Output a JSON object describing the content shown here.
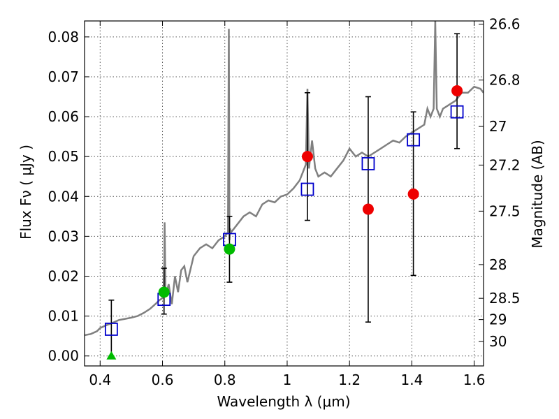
{
  "chart_data": {
    "type": "scatter",
    "xlabel": "Wavelength  λ (μm)",
    "ylabel": "Flux  Fν  ( μJy )",
    "y2label": "Magnitude (AB)",
    "xlim": [
      0.35,
      1.63
    ],
    "ylim": [
      -0.0025,
      0.084
    ],
    "grid": true,
    "x_ticks": [
      {
        "value": 0.4,
        "label": "0.4"
      },
      {
        "value": 0.6,
        "label": "0.6"
      },
      {
        "value": 0.8,
        "label": "0.8"
      },
      {
        "value": 1.0,
        "label": "1"
      },
      {
        "value": 1.2,
        "label": "1.2"
      },
      {
        "value": 1.4,
        "label": "1.4"
      },
      {
        "value": 1.6,
        "label": "1.6"
      }
    ],
    "y_ticks": [
      {
        "value": 0.0,
        "label": "0.00"
      },
      {
        "value": 0.01,
        "label": "0.01"
      },
      {
        "value": 0.02,
        "label": "0.02"
      },
      {
        "value": 0.03,
        "label": "0.03"
      },
      {
        "value": 0.04,
        "label": "0.04"
      },
      {
        "value": 0.05,
        "label": "0.05"
      },
      {
        "value": 0.06,
        "label": "0.06"
      },
      {
        "value": 0.07,
        "label": "0.07"
      },
      {
        "value": 0.08,
        "label": "0.08"
      }
    ],
    "y2_ticks": [
      {
        "mag": 26.6,
        "label": "26.6"
      },
      {
        "mag": 26.8,
        "label": "26.8"
      },
      {
        "mag": 27.0,
        "label": "27"
      },
      {
        "mag": 27.2,
        "label": "27.2"
      },
      {
        "mag": 27.5,
        "label": "27.5"
      },
      {
        "mag": 28.0,
        "label": "28"
      },
      {
        "mag": 28.5,
        "label": "28.5"
      },
      {
        "mag": 29.0,
        "label": "29"
      },
      {
        "mag": 30.0,
        "label": "30"
      }
    ],
    "sed_curve": {
      "color": "#808080",
      "x": [
        0.35,
        0.37,
        0.39,
        0.4,
        0.42,
        0.44,
        0.46,
        0.48,
        0.5,
        0.52,
        0.54,
        0.56,
        0.58,
        0.59,
        0.6,
        0.605,
        0.607,
        0.61,
        0.62,
        0.63,
        0.64,
        0.65,
        0.66,
        0.67,
        0.68,
        0.7,
        0.72,
        0.74,
        0.76,
        0.78,
        0.8,
        0.81,
        0.813,
        0.815,
        0.817,
        0.82,
        0.84,
        0.86,
        0.88,
        0.9,
        0.92,
        0.94,
        0.96,
        0.98,
        1.0,
        1.02,
        1.04,
        1.05,
        1.06,
        1.065,
        1.07,
        1.08,
        1.09,
        1.1,
        1.12,
        1.14,
        1.16,
        1.18,
        1.2,
        1.22,
        1.24,
        1.26,
        1.28,
        1.3,
        1.32,
        1.34,
        1.36,
        1.38,
        1.4,
        1.42,
        1.44,
        1.45,
        1.46,
        1.47,
        1.475,
        1.48,
        1.49,
        1.5,
        1.52,
        1.54,
        1.56,
        1.58,
        1.6,
        1.62,
        1.63
      ],
      "y": [
        0.0052,
        0.0055,
        0.0062,
        0.007,
        0.0077,
        0.0083,
        0.009,
        0.0093,
        0.0096,
        0.01,
        0.0108,
        0.0118,
        0.0132,
        0.014,
        0.0145,
        0.016,
        0.0335,
        0.015,
        0.018,
        0.013,
        0.02,
        0.016,
        0.0215,
        0.0225,
        0.0185,
        0.025,
        0.027,
        0.028,
        0.027,
        0.029,
        0.03,
        0.031,
        0.082,
        0.029,
        0.032,
        0.031,
        0.033,
        0.035,
        0.036,
        0.035,
        0.038,
        0.039,
        0.0385,
        0.04,
        0.0405,
        0.042,
        0.044,
        0.046,
        0.048,
        0.067,
        0.047,
        0.054,
        0.047,
        0.045,
        0.046,
        0.045,
        0.047,
        0.049,
        0.052,
        0.05,
        0.051,
        0.05,
        0.051,
        0.052,
        0.053,
        0.054,
        0.0535,
        0.055,
        0.056,
        0.057,
        0.058,
        0.062,
        0.06,
        0.062,
        0.084,
        0.062,
        0.06,
        0.062,
        0.063,
        0.064,
        0.066,
        0.066,
        0.0675,
        0.067,
        0.066
      ]
    },
    "model_points": {
      "marker": "square",
      "color": "#0000cc",
      "x": [
        0.436,
        0.605,
        0.815,
        1.065,
        1.26,
        1.405,
        1.545
      ],
      "y": [
        0.0067,
        0.0142,
        0.0292,
        0.0418,
        0.0482,
        0.0542,
        0.0612
      ]
    },
    "measured_points": [
      {
        "x": 0.436,
        "y": 0.0,
        "color": "#00bb00",
        "marker": "triangle",
        "err_low": 0.0,
        "err_high": 0.014
      },
      {
        "x": 0.605,
        "y": 0.016,
        "color": "#00bb00",
        "marker": "circle",
        "err_low": 0.0105,
        "err_high": 0.022
      },
      {
        "x": 0.815,
        "y": 0.0268,
        "color": "#00bb00",
        "marker": "circle",
        "err_low": 0.0185,
        "err_high": 0.035
      },
      {
        "x": 1.065,
        "y": 0.05,
        "color": "#ee0000",
        "marker": "circle",
        "err_low": 0.034,
        "err_high": 0.066
      },
      {
        "x": 1.26,
        "y": 0.0368,
        "color": "#ee0000",
        "marker": "circle",
        "err_low": 0.0085,
        "err_high": 0.065
      },
      {
        "x": 1.405,
        "y": 0.0406,
        "color": "#ee0000",
        "marker": "circle",
        "err_low": 0.0202,
        "err_high": 0.0612
      },
      {
        "x": 1.545,
        "y": 0.0665,
        "color": "#ee0000",
        "marker": "circle",
        "err_low": 0.052,
        "err_high": 0.0808
      }
    ]
  }
}
